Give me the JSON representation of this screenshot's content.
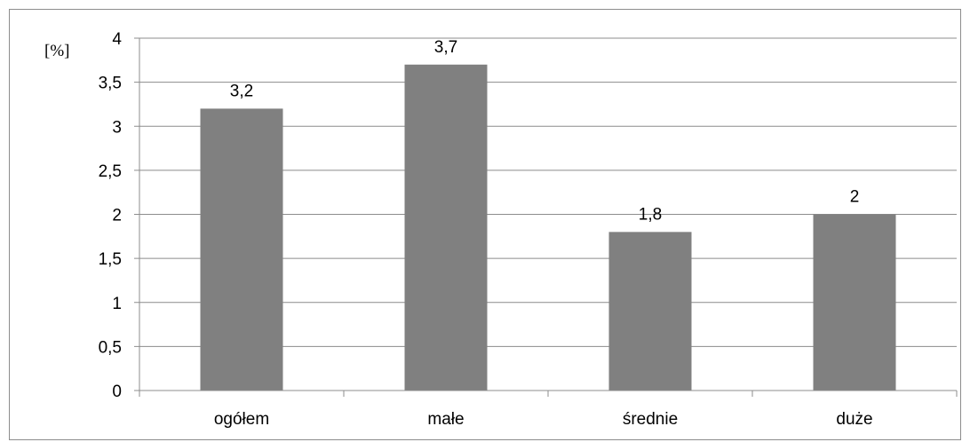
{
  "chart_data": {
    "type": "bar",
    "categories": [
      "ogółem",
      "małe",
      "średnie",
      "duże"
    ],
    "values": [
      3.2,
      3.7,
      1.8,
      2
    ],
    "value_labels": [
      "3,2",
      "3,7",
      "1,8",
      "2"
    ],
    "ylabel": "[%]",
    "ylim": [
      0,
      4
    ],
    "yticks": [
      0,
      0.5,
      1,
      1.5,
      2,
      2.5,
      3,
      3.5,
      4
    ],
    "ytick_labels": [
      "0",
      "0,5",
      "1",
      "1,5",
      "2",
      "2,5",
      "3",
      "3,5",
      "4"
    ],
    "grid": true,
    "legend": "none",
    "bar_color": "#808080",
    "grid_color": "#8c8c8c"
  }
}
